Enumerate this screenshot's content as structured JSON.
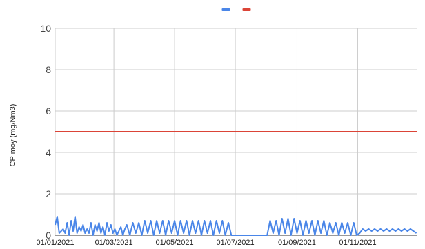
{
  "chart_data": {
    "type": "line",
    "title": "",
    "xlabel": "",
    "ylabel": "CP moy (mg/Nm3)",
    "ylim": [
      0,
      10
    ],
    "yticks": [
      "0",
      "2",
      "4",
      "6",
      "8",
      "10"
    ],
    "xlim": [
      "2021-01-01",
      "2021-12-31"
    ],
    "xticks": [
      {
        "date": "2021-01-01",
        "label": "01/01/2021"
      },
      {
        "date": "2021-03-01",
        "label": "01/03/2021"
      },
      {
        "date": "2021-05-01",
        "label": "01/05/2021"
      },
      {
        "date": "2021-07-01",
        "label": "01/07/2021"
      },
      {
        "date": "2021-09-01",
        "label": "01/09/2021"
      },
      {
        "date": "2021-11-01",
        "label": "01/11/2021"
      }
    ],
    "grid": true,
    "legend_position": "top",
    "series": [
      {
        "name": "",
        "color": "#4a86e8",
        "x": [
          "2021-01-01",
          "2021-01-03",
          "2021-01-05",
          "2021-01-07",
          "2021-01-09",
          "2021-01-11",
          "2021-01-13",
          "2021-01-15",
          "2021-01-17",
          "2021-01-19",
          "2021-01-21",
          "2021-01-23",
          "2021-01-25",
          "2021-01-27",
          "2021-01-29",
          "2021-01-31",
          "2021-02-02",
          "2021-02-04",
          "2021-02-06",
          "2021-02-08",
          "2021-02-10",
          "2021-02-12",
          "2021-02-14",
          "2021-02-16",
          "2021-02-18",
          "2021-02-20",
          "2021-02-22",
          "2021-02-24",
          "2021-02-26",
          "2021-02-28",
          "2021-03-02",
          "2021-03-04",
          "2021-03-06",
          "2021-03-08",
          "2021-03-10",
          "2021-03-12",
          "2021-03-14",
          "2021-03-17",
          "2021-03-20",
          "2021-03-23",
          "2021-03-26",
          "2021-03-29",
          "2021-04-01",
          "2021-04-04",
          "2021-04-07",
          "2021-04-10",
          "2021-04-13",
          "2021-04-16",
          "2021-04-19",
          "2021-04-22",
          "2021-04-25",
          "2021-04-28",
          "2021-05-01",
          "2021-05-04",
          "2021-05-07",
          "2021-05-10",
          "2021-05-13",
          "2021-05-16",
          "2021-05-19",
          "2021-05-22",
          "2021-05-25",
          "2021-05-28",
          "2021-05-31",
          "2021-06-03",
          "2021-06-06",
          "2021-06-09",
          "2021-06-12",
          "2021-06-15",
          "2021-06-18",
          "2021-06-21",
          "2021-06-24",
          "2021-06-27",
          "2021-06-30",
          "2021-07-03",
          "2021-07-06",
          "2021-07-09",
          "2021-07-12",
          "2021-07-15",
          "2021-07-18",
          "2021-07-21",
          "2021-07-24",
          "2021-07-27",
          "2021-07-30",
          "2021-08-02",
          "2021-08-05",
          "2021-08-08",
          "2021-08-11",
          "2021-08-14",
          "2021-08-17",
          "2021-08-20",
          "2021-08-23",
          "2021-08-26",
          "2021-08-29",
          "2021-09-01",
          "2021-09-04",
          "2021-09-07",
          "2021-09-10",
          "2021-09-13",
          "2021-09-16",
          "2021-09-19",
          "2021-09-22",
          "2021-09-25",
          "2021-09-28",
          "2021-10-01",
          "2021-10-04",
          "2021-10-07",
          "2021-10-10",
          "2021-10-13",
          "2021-10-16",
          "2021-10-19",
          "2021-10-22",
          "2021-10-25",
          "2021-10-28",
          "2021-10-31",
          "2021-11-03",
          "2021-11-06",
          "2021-11-09",
          "2021-11-12",
          "2021-11-15",
          "2021-11-18",
          "2021-11-21",
          "2021-11-24",
          "2021-11-27",
          "2021-11-30",
          "2021-12-03",
          "2021-12-06",
          "2021-12-09",
          "2021-12-12",
          "2021-12-15",
          "2021-12-18",
          "2021-12-21",
          "2021-12-24",
          "2021-12-27",
          "2021-12-30"
        ],
        "y": [
          0.5,
          0.9,
          0.1,
          0.2,
          0.3,
          0.1,
          0.6,
          0.0,
          0.7,
          0.2,
          0.9,
          0.1,
          0.4,
          0.2,
          0.5,
          0.1,
          0.3,
          0.1,
          0.6,
          0.0,
          0.5,
          0.2,
          0.6,
          0.1,
          0.4,
          0.0,
          0.6,
          0.2,
          0.5,
          0.1,
          0.3,
          0.0,
          0.2,
          0.4,
          0.0,
          0.3,
          0.5,
          0.0,
          0.6,
          0.1,
          0.6,
          0.0,
          0.7,
          0.1,
          0.7,
          0.0,
          0.7,
          0.1,
          0.7,
          0.0,
          0.7,
          0.1,
          0.7,
          0.0,
          0.7,
          0.1,
          0.7,
          0.0,
          0.7,
          0.1,
          0.7,
          0.0,
          0.7,
          0.1,
          0.7,
          0.0,
          0.7,
          0.1,
          0.7,
          0.0,
          0.6,
          0.0,
          0.0,
          0.0,
          0.0,
          0.0,
          0.0,
          0.0,
          0.0,
          0.0,
          0.0,
          0.0,
          0.0,
          0.0,
          0.7,
          0.1,
          0.7,
          0.0,
          0.8,
          0.1,
          0.8,
          0.0,
          0.8,
          0.1,
          0.7,
          0.0,
          0.7,
          0.1,
          0.7,
          0.0,
          0.7,
          0.1,
          0.7,
          0.0,
          0.6,
          0.1,
          0.6,
          0.0,
          0.6,
          0.1,
          0.6,
          0.0,
          0.6,
          0.0,
          0.1,
          0.3,
          0.2,
          0.3,
          0.2,
          0.3,
          0.2,
          0.3,
          0.2,
          0.3,
          0.2,
          0.3,
          0.2,
          0.3,
          0.2,
          0.3,
          0.2,
          0.3,
          0.2,
          0.1
        ]
      },
      {
        "name": "",
        "color": "#db4437",
        "x": [
          "2021-01-01",
          "2021-12-31"
        ],
        "y": [
          5.0,
          5.0
        ]
      }
    ]
  }
}
